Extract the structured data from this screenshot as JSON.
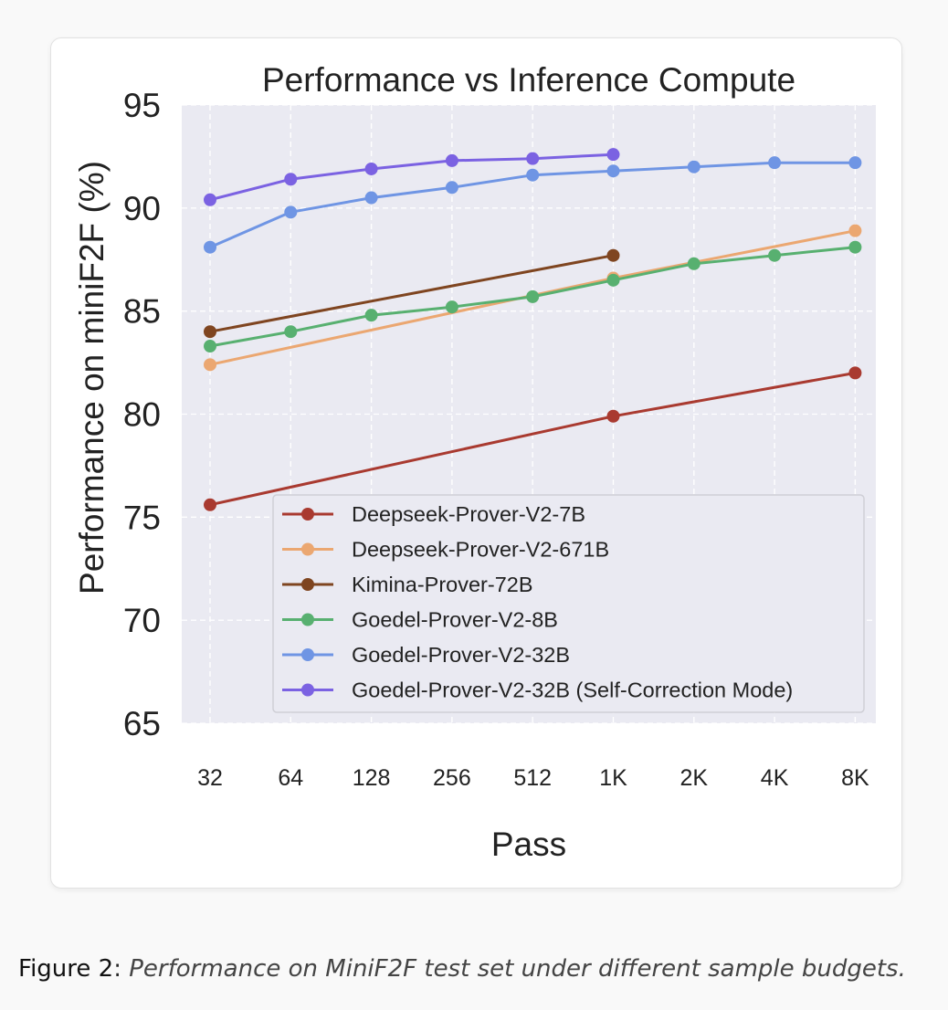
{
  "chart_data": {
    "type": "line",
    "title": "Performance vs Inference Compute",
    "xlabel": "Pass",
    "ylabel": "Performance on miniF2F (%)",
    "categories": [
      "32",
      "64",
      "128",
      "256",
      "512",
      "1K",
      "2K",
      "4K",
      "8K"
    ],
    "ylim": [
      65,
      95
    ],
    "yticks": [
      65,
      70,
      75,
      80,
      85,
      90,
      95
    ],
    "grid": true,
    "legend_position": "lower-right",
    "series": [
      {
        "name": "Deepseek-Prover-V2-7B",
        "color": "#a93a30",
        "x": [
          "32",
          "1K",
          "8K"
        ],
        "values": [
          75.6,
          79.9,
          82.0
        ]
      },
      {
        "name": "Deepseek-Prover-V2-671B",
        "color": "#eba771",
        "x": [
          "32",
          "1K",
          "8K"
        ],
        "values": [
          82.4,
          86.6,
          88.9
        ]
      },
      {
        "name": "Kimina-Prover-72B",
        "color": "#7f4520",
        "x": [
          "32",
          "1K"
        ],
        "values": [
          84.0,
          87.7
        ]
      },
      {
        "name": "Goedel-Prover-V2-8B",
        "color": "#58b070",
        "x": [
          "32",
          "64",
          "128",
          "256",
          "512",
          "1K",
          "2K",
          "4K",
          "8K"
        ],
        "values": [
          83.3,
          84.0,
          84.8,
          85.2,
          85.7,
          86.5,
          87.3,
          87.7,
          88.1
        ]
      },
      {
        "name": "Goedel-Prover-V2-32B",
        "color": "#6f95e4",
        "x": [
          "32",
          "64",
          "128",
          "256",
          "512",
          "1K",
          "2K",
          "4K",
          "8K"
        ],
        "values": [
          88.1,
          89.8,
          90.5,
          91.0,
          91.6,
          91.8,
          92.0,
          92.2,
          92.2
        ]
      },
      {
        "name": "Goedel-Prover-V2-32B (Self-Correction Mode)",
        "color": "#7b62e2",
        "x": [
          "32",
          "64",
          "128",
          "256",
          "512",
          "1K"
        ],
        "values": [
          90.4,
          91.4,
          91.9,
          92.3,
          92.4,
          92.6
        ]
      }
    ]
  },
  "caption": {
    "label": "Figure 2",
    "text": "Performance on MiniF2F test set under different sample budgets."
  }
}
